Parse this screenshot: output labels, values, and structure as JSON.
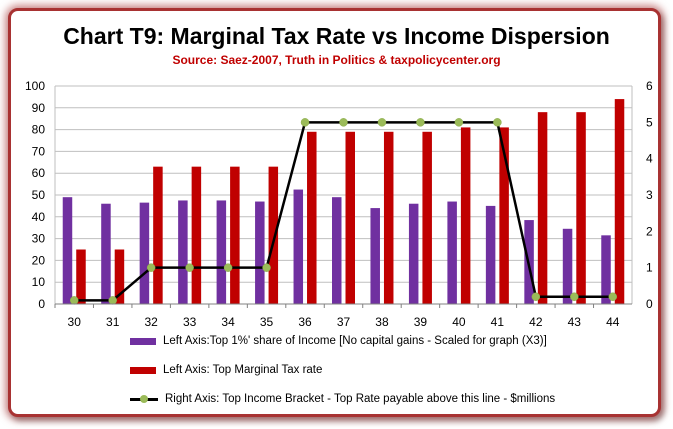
{
  "chart_data": {
    "type": "bar",
    "title": "Chart T9: Marginal Tax Rate vs Income Dispersion",
    "subtitle": "Source: Saez-2007, Truth in Politics & taxpolicycenter.org",
    "categories": [
      "30",
      "31",
      "32",
      "33",
      "34",
      "35",
      "36",
      "37",
      "38",
      "39",
      "40",
      "41",
      "42",
      "43",
      "44"
    ],
    "left_axis": {
      "ylim": [
        0,
        100
      ],
      "ticks": [
        0,
        10,
        20,
        30,
        40,
        50,
        60,
        70,
        80,
        90,
        100
      ]
    },
    "right_axis": {
      "ylim": [
        0,
        6
      ],
      "ticks": [
        0,
        1,
        2,
        3,
        4,
        5,
        6
      ]
    },
    "grid": true,
    "legend_position": "bottom",
    "series": [
      {
        "name": "Left Axis:Top 1%' share of Income [No capital gains - Scaled for graph (X3)]",
        "type": "bar",
        "axis": "left",
        "color": "#7030a0",
        "values": [
          49,
          46,
          46.5,
          47.5,
          47.5,
          47,
          52.5,
          49,
          44,
          46,
          47,
          45,
          38.5,
          34.5,
          31.5
        ]
      },
      {
        "name": "Left Axis: Top Marginal Tax rate",
        "type": "bar",
        "axis": "left",
        "color": "#c00000",
        "values": [
          25,
          25,
          63,
          63,
          63,
          63,
          79,
          79,
          79,
          79,
          81,
          81,
          88,
          88,
          94
        ]
      },
      {
        "name": "Right Axis: Top Income Bracket - Top Rate payable above this line - $millions",
        "type": "line",
        "axis": "right",
        "color": "#000000",
        "marker_color": "#9bbb59",
        "values": [
          0.1,
          0.1,
          1,
          1,
          1,
          1,
          5,
          5,
          5,
          5,
          5,
          5,
          0.2,
          0.2,
          0.2
        ]
      }
    ]
  }
}
